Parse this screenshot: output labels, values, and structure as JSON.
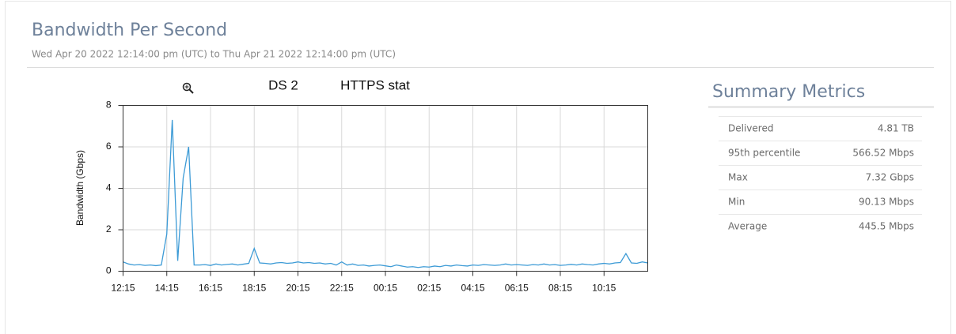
{
  "header": {
    "title": "Bandwidth Per Second",
    "subtitle": "Wed Apr 20 2022 12:14:00 pm (UTC) to Thu Apr 21 2022 12:14:00 pm (UTC)"
  },
  "chart_data": {
    "type": "line",
    "title": "DS 2",
    "subtitle": "HTTPS stat",
    "y_label": "Bandwidth (Gbps)",
    "color": "#3d9bd6",
    "grid": true,
    "ylim": [
      0,
      8
    ],
    "yticks": [
      0,
      2,
      4,
      6,
      8
    ],
    "categories": [
      "12:15",
      null,
      null,
      null,
      null,
      null,
      null,
      null,
      "14:15",
      null,
      null,
      null,
      null,
      null,
      null,
      null,
      "16:15",
      null,
      null,
      null,
      null,
      null,
      null,
      null,
      "18:15",
      null,
      null,
      null,
      null,
      null,
      null,
      null,
      "20:15",
      null,
      null,
      null,
      null,
      null,
      null,
      null,
      "22:15",
      null,
      null,
      null,
      null,
      null,
      null,
      null,
      "00:15",
      null,
      null,
      null,
      null,
      null,
      null,
      null,
      "02:15",
      null,
      null,
      null,
      null,
      null,
      null,
      null,
      "04:15",
      null,
      null,
      null,
      null,
      null,
      null,
      null,
      "06:15",
      null,
      null,
      null,
      null,
      null,
      null,
      null,
      "08:15",
      null,
      null,
      null,
      null,
      null,
      null,
      null,
      "10:15",
      null,
      null,
      null,
      null,
      null,
      null,
      null,
      null
    ],
    "values": [
      0.45,
      0.35,
      0.3,
      0.32,
      0.28,
      0.3,
      0.27,
      0.3,
      1.8,
      7.3,
      0.5,
      4.5,
      6.0,
      0.3,
      0.3,
      0.32,
      0.28,
      0.35,
      0.3,
      0.33,
      0.35,
      0.3,
      0.34,
      0.38,
      1.1,
      0.4,
      0.38,
      0.35,
      0.4,
      0.42,
      0.38,
      0.4,
      0.45,
      0.4,
      0.42,
      0.38,
      0.4,
      0.35,
      0.38,
      0.3,
      0.45,
      0.3,
      0.35,
      0.28,
      0.3,
      0.25,
      0.28,
      0.3,
      0.26,
      0.22,
      0.3,
      0.25,
      0.2,
      0.22,
      0.18,
      0.22,
      0.2,
      0.25,
      0.22,
      0.28,
      0.25,
      0.3,
      0.27,
      0.25,
      0.3,
      0.28,
      0.32,
      0.3,
      0.28,
      0.3,
      0.35,
      0.3,
      0.32,
      0.3,
      0.28,
      0.32,
      0.3,
      0.35,
      0.3,
      0.32,
      0.28,
      0.3,
      0.33,
      0.3,
      0.35,
      0.32,
      0.3,
      0.35,
      0.38,
      0.35,
      0.4,
      0.42,
      0.85,
      0.4,
      0.38,
      0.45,
      0.4
    ]
  },
  "summary": {
    "title": "Summary Metrics",
    "rows": [
      [
        "Delivered",
        "4.81 TB"
      ],
      [
        "95th percentile",
        "566.52 Mbps"
      ],
      [
        "Max",
        "7.32 Gbps"
      ],
      [
        "Min",
        "90.13 Mbps"
      ],
      [
        "Average",
        "445.5 Mbps"
      ]
    ]
  }
}
